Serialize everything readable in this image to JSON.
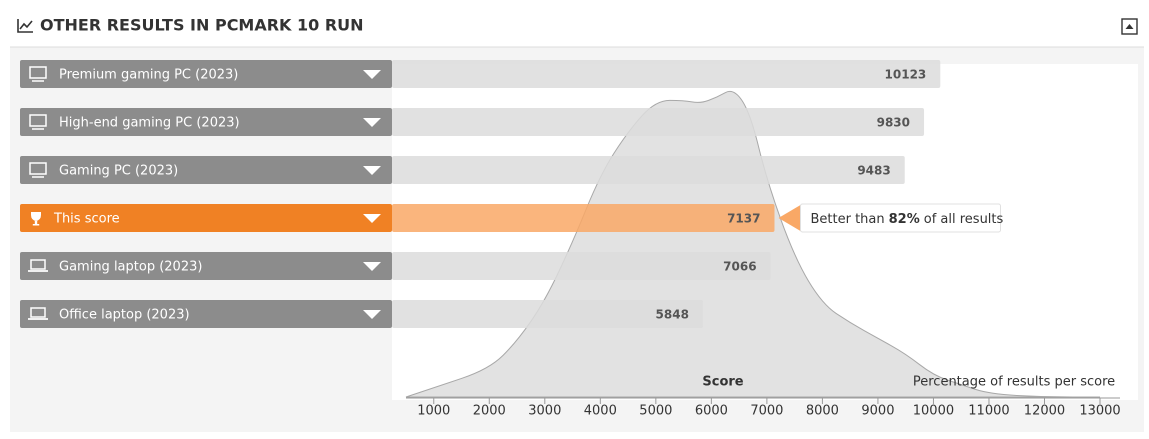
{
  "chart_data": {
    "type": "bar",
    "title": "OTHER RESULTS IN PCMARK 10 RUN",
    "categories": [
      "Premium gaming PC (2023)",
      "High-end gaming PC (2023)",
      "Gaming PC (2023)",
      "This score",
      "Gaming laptop (2023)",
      "Office laptop (2023)"
    ],
    "values": [
      10123,
      9830,
      9483,
      7137,
      7066,
      5848
    ],
    "bar_colors": [
      "#dcdcdc",
      "#dcdcdc",
      "#dcdcdc",
      "#f9a866",
      "#dcdcdc",
      "#dcdcdc"
    ],
    "label_colors": [
      "#8c8c8c",
      "#8c8c8c",
      "#8c8c8c",
      "#f08124",
      "#8c8c8c",
      "#8c8c8c"
    ],
    "callout": {
      "prefix": "Better than",
      "percent": "82%",
      "suffix": "of all results"
    },
    "distribution": {
      "x": [
        500,
        1000,
        2000,
        2500,
        3000,
        3500,
        4000,
        4500,
        5000,
        5500,
        5800,
        6100,
        6400,
        6700,
        7000,
        7500,
        8000,
        8500,
        9000,
        9500,
        10000,
        10500,
        11000,
        12000,
        13000
      ],
      "values": [
        0,
        3,
        9,
        18,
        31,
        50,
        72,
        86,
        96,
        96,
        95,
        97,
        100,
        92,
        70,
        45,
        30,
        24,
        19,
        14,
        7,
        4,
        1,
        0,
        0
      ],
      "ylim": [
        0,
        100
      ],
      "color": "#e2e2e2"
    },
    "xlabel": "Score",
    "ylabel": "Percentage of results per score",
    "xlim": [
      500,
      13360
    ],
    "xticks": [
      1000,
      2000,
      3000,
      4000,
      5000,
      6000,
      7000,
      8000,
      9000,
      10000,
      11000,
      12000,
      13000
    ]
  }
}
